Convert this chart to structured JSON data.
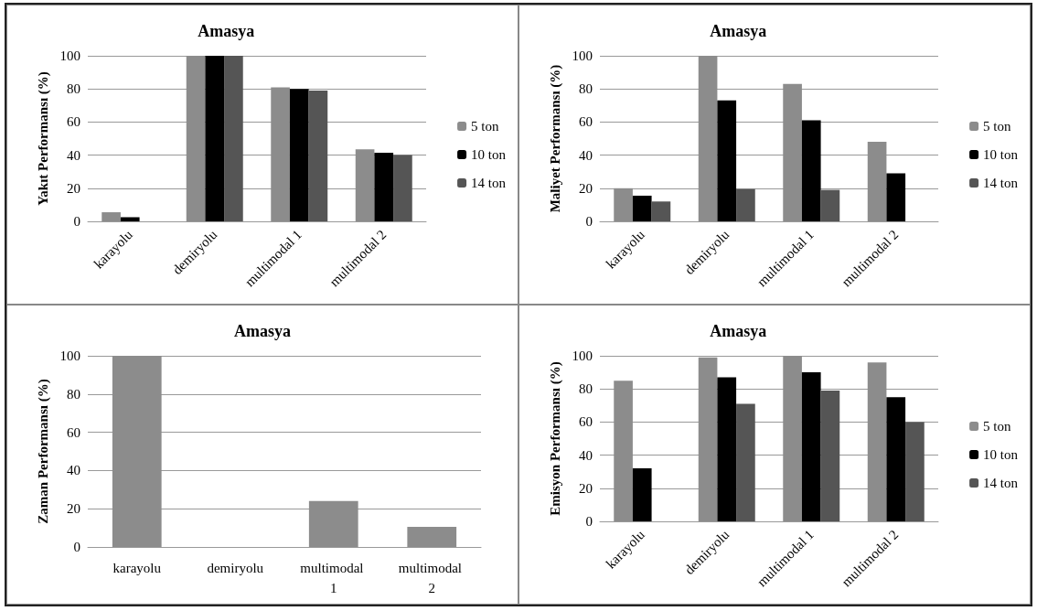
{
  "chart_data": [
    {
      "type": "bar",
      "title": "Amasya",
      "ylabel": "Yakıt Performansı (%)",
      "categories": [
        "karayolu",
        "demiryolu",
        "multimodal 1",
        "multimodal 2"
      ],
      "series": [
        {
          "name": "5 ton",
          "color": "#8c8c8c",
          "values": [
            5.5,
            100,
            81,
            43.5
          ]
        },
        {
          "name": "10 ton",
          "color": "#000000",
          "values": [
            2.5,
            100,
            80,
            41.5
          ]
        },
        {
          "name": "14 ton",
          "color": "#555555",
          "values": [
            0,
            100,
            79,
            40
          ]
        }
      ],
      "ylim": [
        0,
        100
      ],
      "yticks": [
        0,
        20,
        40,
        60,
        80,
        100
      ],
      "grid": "y",
      "legend": "right"
    },
    {
      "type": "bar",
      "title": "Amasya",
      "ylabel": "Maliyet Performansı (%)",
      "categories": [
        "karayolu",
        "demiryolu",
        "multimodal 1",
        "multimodal 2"
      ],
      "series": [
        {
          "name": "5 ton",
          "color": "#8c8c8c",
          "values": [
            20,
            100,
            83,
            48
          ]
        },
        {
          "name": "10 ton",
          "color": "#000000",
          "values": [
            15.5,
            73,
            61,
            29
          ]
        },
        {
          "name": "14 ton",
          "color": "#555555",
          "values": [
            12,
            19.5,
            19,
            0
          ]
        }
      ],
      "ylim": [
        0,
        100
      ],
      "yticks": [
        0,
        20,
        40,
        60,
        80,
        100
      ],
      "grid": "y",
      "legend": "right"
    },
    {
      "type": "bar",
      "title": "Amasya",
      "ylabel": "Zaman Performansı (%)",
      "categories": [
        "karayolu",
        "demiryolu",
        "multimodal 1",
        "multimodal 2"
      ],
      "series": [
        {
          "color": "#8c8c8c",
          "values": [
            100,
            0,
            24,
            10.5
          ]
        }
      ],
      "ylim": [
        0,
        100
      ],
      "yticks": [
        0,
        20,
        40,
        60,
        80,
        100
      ],
      "grid": "y"
    },
    {
      "type": "bar",
      "title": "Amasya",
      "ylabel": "Emisyon Performansı (%)",
      "categories": [
        "karayolu",
        "demiryolu",
        "multimodal 1",
        "multimodal 2"
      ],
      "series": [
        {
          "name": "5 ton",
          "color": "#8c8c8c",
          "values": [
            85,
            99,
            100,
            96
          ]
        },
        {
          "name": "10 ton",
          "color": "#000000",
          "values": [
            32,
            87,
            90,
            75
          ]
        },
        {
          "name": "14 ton",
          "color": "#555555",
          "values": [
            0,
            71,
            79,
            60
          ]
        }
      ],
      "ylim": [
        0,
        100
      ],
      "yticks": [
        0,
        20,
        40,
        60,
        80,
        100
      ],
      "grid": "y",
      "legend": "right"
    }
  ]
}
